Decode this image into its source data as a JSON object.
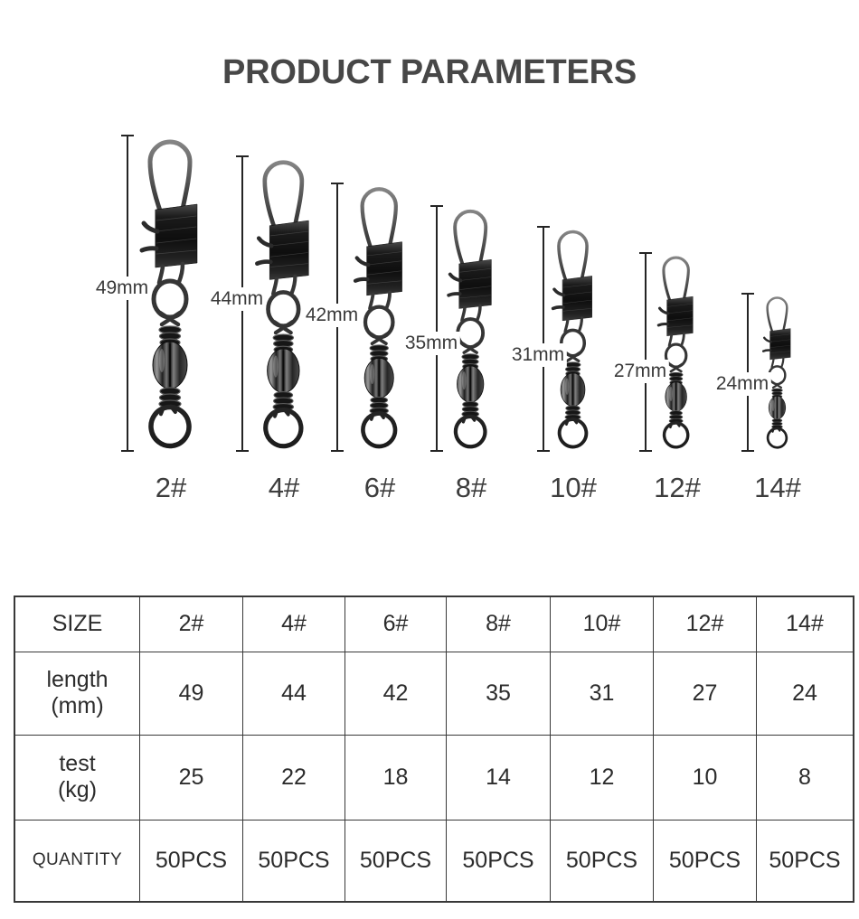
{
  "title": "PRODUCT PARAMETERS",
  "products": [
    {
      "size": "2#",
      "length_label": "49mm",
      "length_mm": 49
    },
    {
      "size": "4#",
      "length_label": "44mm",
      "length_mm": 44
    },
    {
      "size": "6#",
      "length_label": "42mm",
      "length_mm": 42
    },
    {
      "size": "8#",
      "length_label": "35mm",
      "length_mm": 35
    },
    {
      "size": "10#",
      "length_label": "31mm",
      "length_mm": 31
    },
    {
      "size": "12#",
      "length_label": "27mm",
      "length_mm": 27
    },
    {
      "size": "14#",
      "length_label": "24mm",
      "length_mm": 24
    }
  ],
  "table": {
    "rows": [
      {
        "label_lines": [
          "SIZE"
        ],
        "values": [
          "2#",
          "4#",
          "6#",
          "8#",
          "10#",
          "12#",
          "14#"
        ]
      },
      {
        "label_lines": [
          "length",
          "(mm)"
        ],
        "values": [
          "49",
          "44",
          "42",
          "35",
          "31",
          "27",
          "24"
        ]
      },
      {
        "label_lines": [
          "test",
          "(kg)"
        ],
        "values": [
          "25",
          "22",
          "18",
          "14",
          "12",
          "10",
          "8"
        ]
      },
      {
        "label_lines": [
          "QUANTITY"
        ],
        "label_small": true,
        "values": [
          "50PCS",
          "50PCS",
          "50PCS",
          "50PCS",
          "50PCS",
          "50PCS",
          "50PCS"
        ]
      }
    ]
  },
  "colors": {
    "text": "#2c2c2c",
    "title": "#474747",
    "line": "#242424"
  }
}
